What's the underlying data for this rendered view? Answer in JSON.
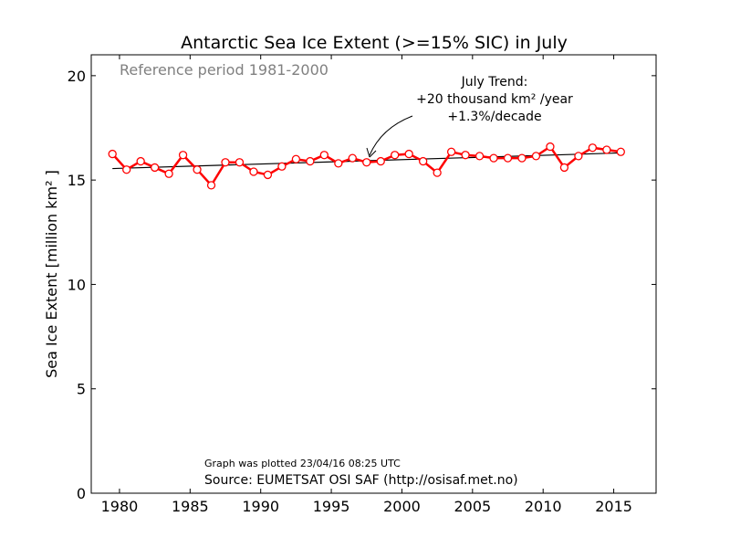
{
  "chart_data": {
    "type": "line",
    "title": "Antarctic Sea Ice Extent (>=15% SIC) in July",
    "xlabel": "",
    "ylabel": "Sea Ice Extent [million km² ]",
    "xlim": [
      1978,
      2018
    ],
    "ylim": [
      0,
      21
    ],
    "x_ticks": [
      1980,
      1985,
      1990,
      1995,
      2000,
      2005,
      2010,
      2015
    ],
    "y_ticks": [
      0,
      5,
      10,
      15,
      20
    ],
    "grid": false,
    "series": [
      {
        "color": "#ff0000",
        "marker": "open-circle",
        "points": [
          {
            "x": 1979.5,
            "y": 16.25
          },
          {
            "x": 1980.5,
            "y": 15.5
          },
          {
            "x": 1981.5,
            "y": 15.9
          },
          {
            "x": 1982.5,
            "y": 15.6
          },
          {
            "x": 1983.5,
            "y": 15.3
          },
          {
            "x": 1984.5,
            "y": 16.2
          },
          {
            "x": 1985.5,
            "y": 15.5
          },
          {
            "x": 1986.5,
            "y": 14.75
          },
          {
            "x": 1987.5,
            "y": 15.85
          },
          {
            "x": 1988.5,
            "y": 15.85
          },
          {
            "x": 1989.5,
            "y": 15.4
          },
          {
            "x": 1990.5,
            "y": 15.25
          },
          {
            "x": 1991.5,
            "y": 15.65
          },
          {
            "x": 1992.5,
            "y": 16.0
          },
          {
            "x": 1993.5,
            "y": 15.9
          },
          {
            "x": 1994.5,
            "y": 16.2
          },
          {
            "x": 1995.5,
            "y": 15.8
          },
          {
            "x": 1996.5,
            "y": 16.05
          },
          {
            "x": 1997.5,
            "y": 15.85
          },
          {
            "x": 1998.5,
            "y": 15.9
          },
          {
            "x": 1999.5,
            "y": 16.2
          },
          {
            "x": 2000.5,
            "y": 16.25
          },
          {
            "x": 2001.5,
            "y": 15.9
          },
          {
            "x": 2002.5,
            "y": 15.35
          },
          {
            "x": 2003.5,
            "y": 16.35
          },
          {
            "x": 2004.5,
            "y": 16.2
          },
          {
            "x": 2005.5,
            "y": 16.15
          },
          {
            "x": 2006.5,
            "y": 16.05
          },
          {
            "x": 2007.5,
            "y": 16.05
          },
          {
            "x": 2008.5,
            "y": 16.05
          },
          {
            "x": 2009.5,
            "y": 16.15
          },
          {
            "x": 2010.5,
            "y": 16.6
          },
          {
            "x": 2011.5,
            "y": 15.6
          },
          {
            "x": 2012.5,
            "y": 16.15
          },
          {
            "x": 2013.5,
            "y": 16.55
          },
          {
            "x": 2014.5,
            "y": 16.45
          },
          {
            "x": 2015.5,
            "y": 16.35
          }
        ]
      }
    ],
    "trend_line": {
      "color": "#000000",
      "x": [
        1979.5,
        2015.5
      ],
      "y": [
        15.55,
        16.3
      ]
    },
    "annotations": {
      "reference": "Reference period 1981-2000",
      "trend_title": "July Trend:",
      "trend_line1": "+20 thousand km² /year",
      "trend_line2": "+1.3%/decade",
      "plotted": "Graph was plotted 23/04/16 08:25 UTC",
      "source": "Source: EUMETSAT OSI SAF (http://osisaf.met.no)"
    }
  }
}
